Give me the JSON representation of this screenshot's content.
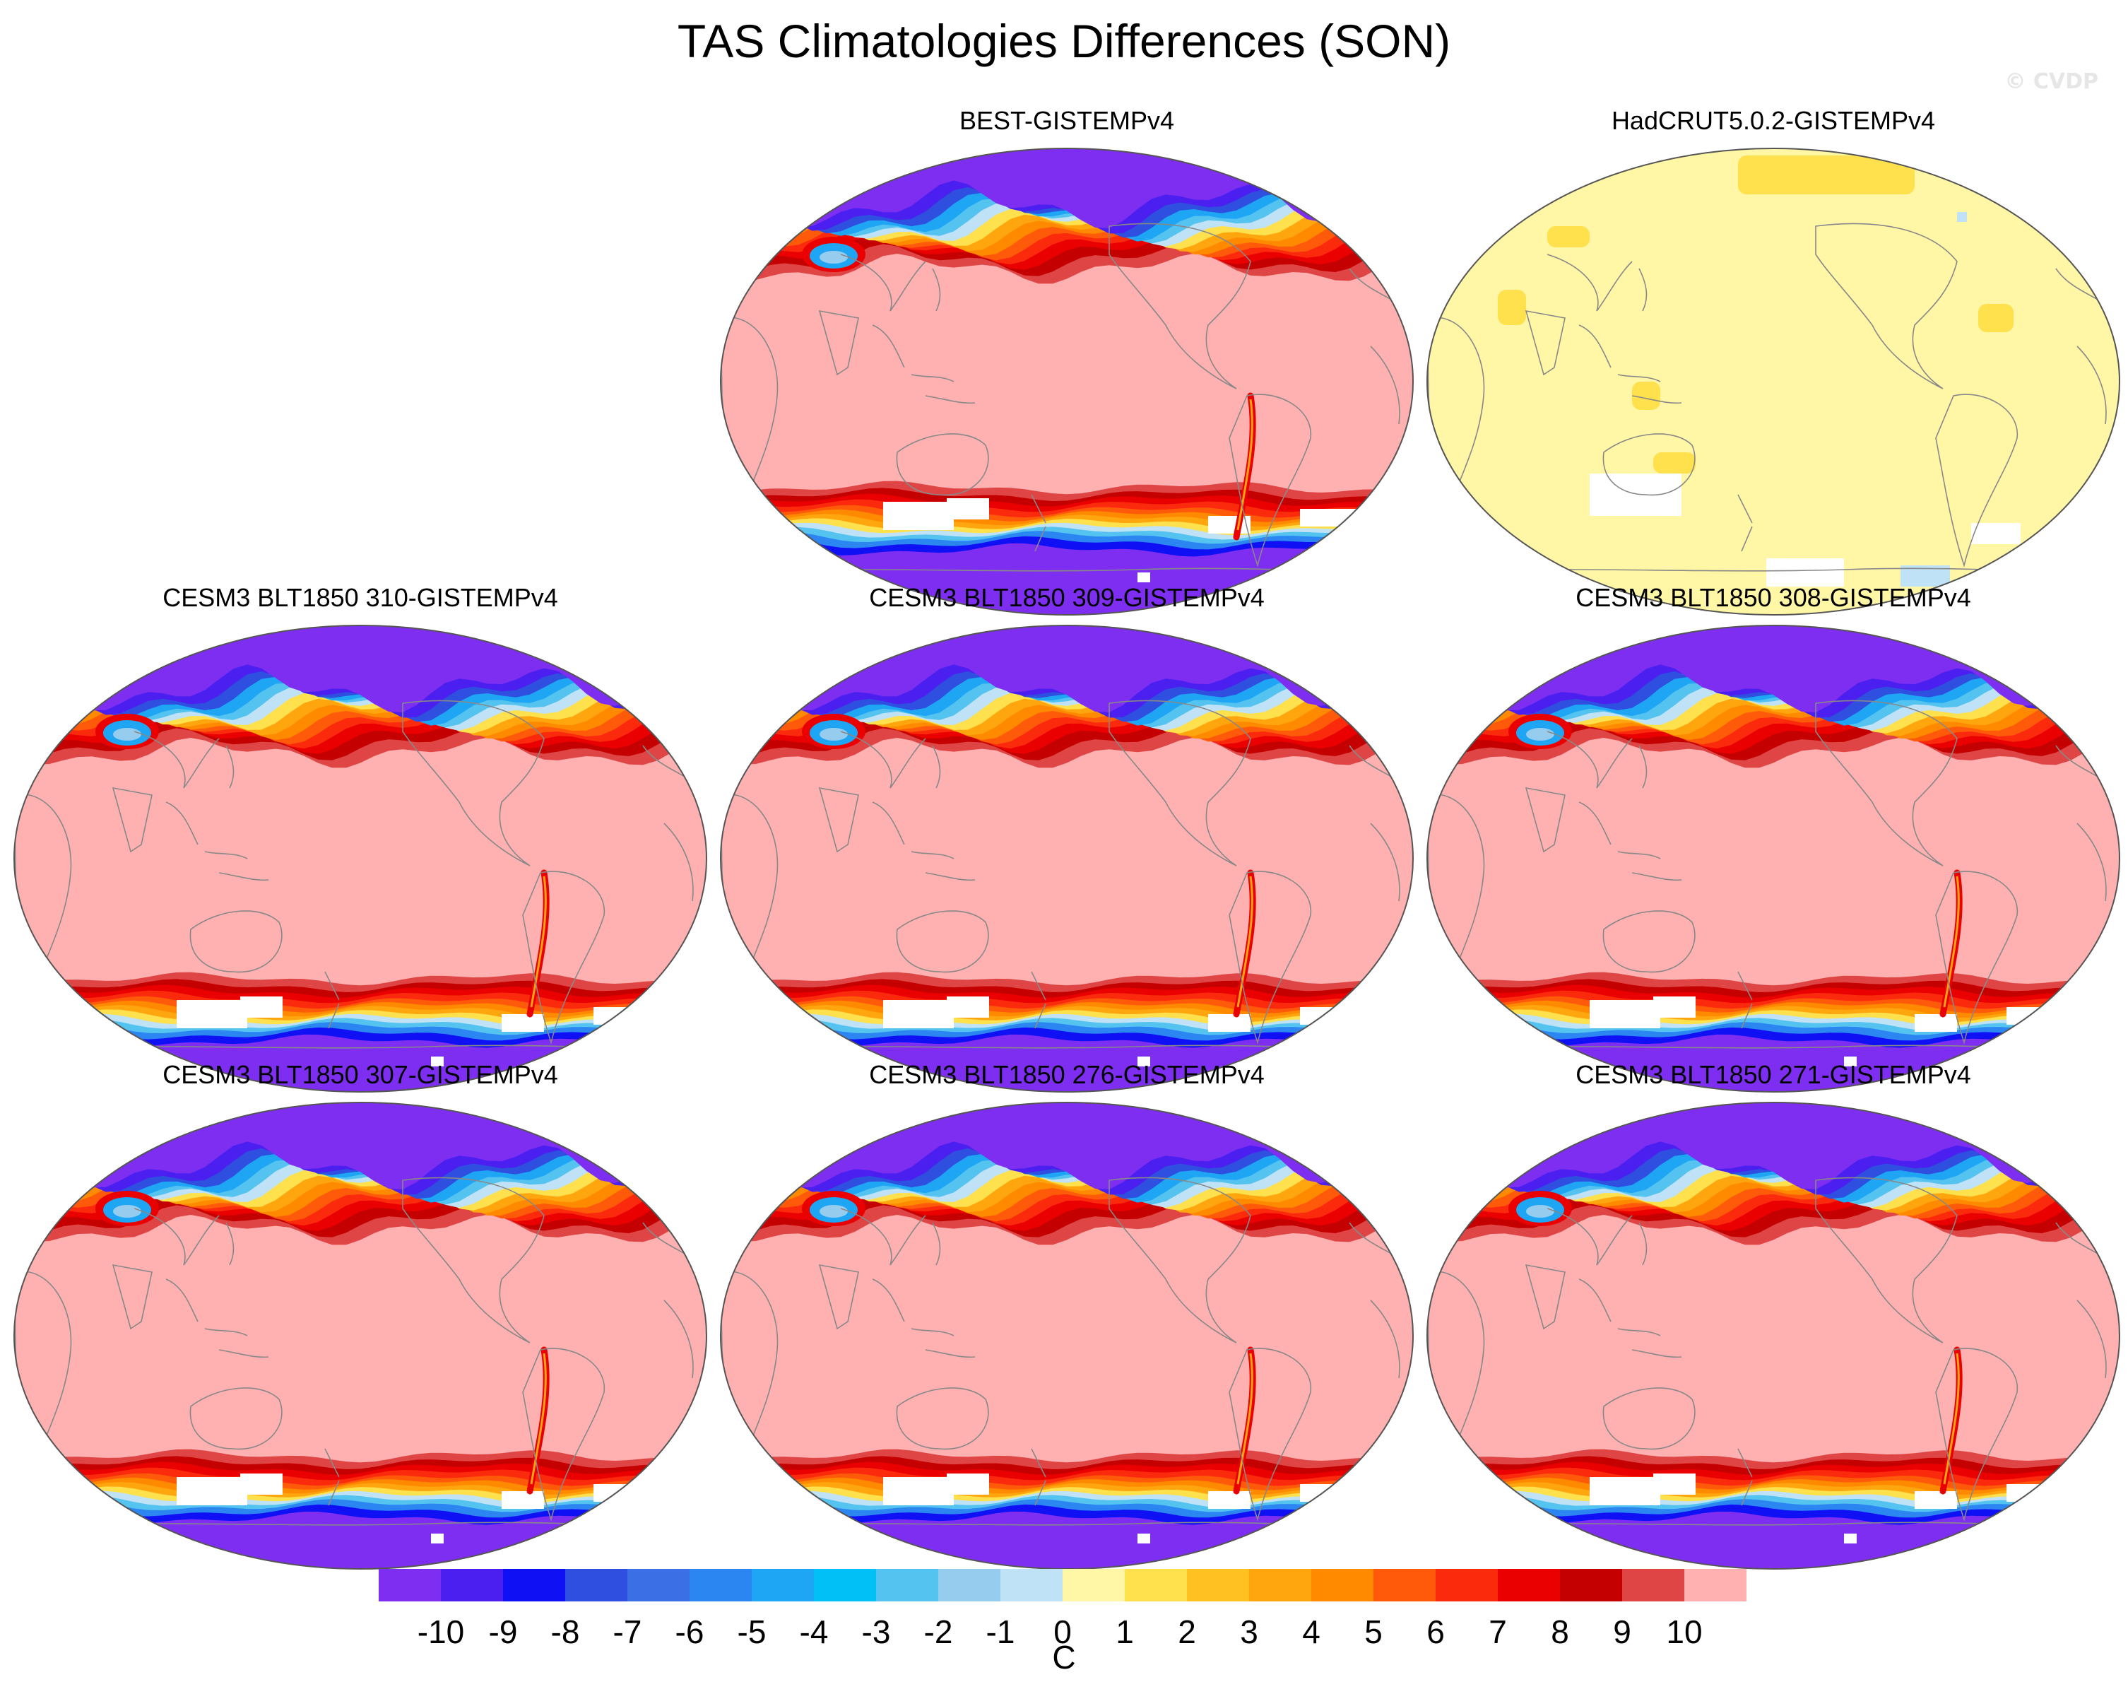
{
  "figure": {
    "title": "TAS Climatologies Differences (SON)",
    "watermark": "© CVDP"
  },
  "panels": [
    {
      "id": "best",
      "label": "BEST-GISTEMPv4",
      "style": "anomaly",
      "variant": "observed"
    },
    {
      "id": "hadcrut",
      "label": "HadCRUT5.0.2-GISTEMPv4",
      "style": "flat"
    },
    {
      "id": "m310",
      "label": "CESM3 BLT1850 310-GISTEMPv4",
      "style": "anomaly",
      "variant": "model"
    },
    {
      "id": "m309",
      "label": "CESM3 BLT1850 309-GISTEMPv4",
      "style": "anomaly",
      "variant": "model"
    },
    {
      "id": "m308",
      "label": "CESM3 BLT1850 308-GISTEMPv4",
      "style": "anomaly",
      "variant": "model"
    },
    {
      "id": "m307",
      "label": "CESM3 BLT1850 307-GISTEMPv4",
      "style": "anomaly",
      "variant": "model"
    },
    {
      "id": "m276",
      "label": "CESM3 BLT1850 276-GISTEMPv4",
      "style": "anomaly",
      "variant": "model"
    },
    {
      "id": "m271",
      "label": "CESM3 BLT1850 271-GISTEMPv4",
      "style": "anomaly",
      "variant": "model"
    }
  ],
  "colorbar": {
    "unit": "C",
    "ticks": [
      "-10",
      "-9",
      "-8",
      "-7",
      "-6",
      "-5",
      "-4",
      "-3",
      "-2",
      "-1",
      "0",
      "1",
      "2",
      "3",
      "4",
      "5",
      "6",
      "7",
      "8",
      "9",
      "10"
    ],
    "colors": [
      "#7e2ef0",
      "#4b1ff0",
      "#1010f5",
      "#2f4fe0",
      "#3a6fe6",
      "#2c86f2",
      "#1ea6f4",
      "#00c0f6",
      "#55c3f0",
      "#96cdef",
      "#bfe2f6",
      "#fff6a6",
      "#ffe04d",
      "#ffc121",
      "#ffa50e",
      "#ff8a00",
      "#ff5a0a",
      "#fb2a0c",
      "#ea0000",
      "#c40000",
      "#df4545",
      "#ffb0b0"
    ]
  },
  "map_colors": {
    "ocean_fill": "#ffb0b0",
    "flat_fill": "#fff6a6",
    "missing": "#ffffff",
    "land_outline": "#888888",
    "polar_fill": "#7e2ef0"
  }
}
